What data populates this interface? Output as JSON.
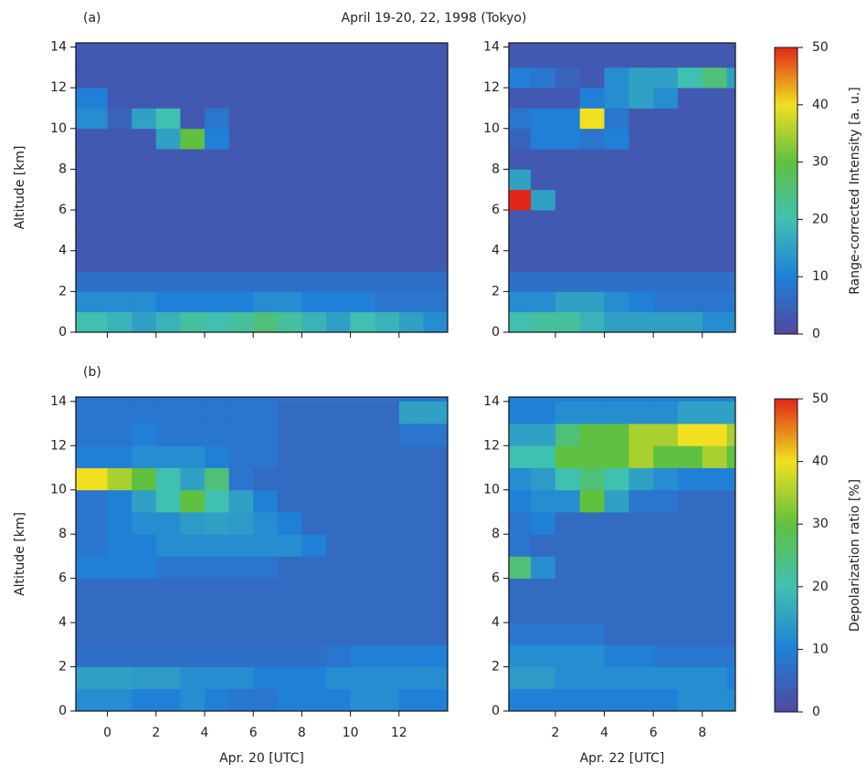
{
  "title": "April 19-20, 22, 1998 (Tokyo)",
  "colormap": [
    "#5048a0",
    "#2080d8",
    "#40c0b0",
    "#60c040",
    "#f0e020",
    "#e02818"
  ],
  "chart_data": [
    {
      "type": "heatmap",
      "label": "(a)",
      "ylabel": "Altitude [km]",
      "xtick_labels": false,
      "xlim": [
        -1.3,
        14
      ],
      "ylim": [
        0,
        14.2
      ],
      "xticks": [
        0,
        2,
        4,
        6,
        8,
        10,
        12
      ],
      "yticks": [
        0,
        2,
        4,
        6,
        8,
        10,
        12,
        14
      ],
      "xbins": [
        -1.3,
        0,
        1,
        2,
        3,
        4,
        5,
        6,
        7,
        8,
        9,
        10,
        11,
        12,
        13,
        14
      ],
      "ybins": [
        0,
        1,
        2,
        3,
        4,
        5,
        6,
        7,
        8,
        9,
        10,
        11,
        12,
        13,
        14
      ],
      "z": [
        [
          20,
          18,
          15,
          18,
          22,
          20,
          22,
          25,
          22,
          18,
          15,
          20,
          18,
          15,
          12
        ],
        [
          12,
          12,
          12,
          10,
          10,
          10,
          10,
          12,
          12,
          10,
          10,
          10,
          8,
          8,
          8
        ],
        [
          7,
          7,
          7,
          7,
          7,
          7,
          7,
          7,
          7,
          7,
          7,
          7,
          7,
          7,
          7
        ],
        [
          3,
          3,
          3,
          3,
          3,
          3,
          3,
          3,
          3,
          3,
          3,
          3,
          3,
          3,
          3
        ],
        [
          3,
          3,
          3,
          3,
          3,
          3,
          3,
          3,
          3,
          3,
          3,
          3,
          3,
          3,
          3
        ],
        [
          3,
          3,
          3,
          3,
          3,
          3,
          3,
          3,
          3,
          3,
          3,
          3,
          3,
          3,
          3
        ],
        [
          3,
          3,
          3,
          3,
          3,
          3,
          3,
          3,
          3,
          3,
          3,
          3,
          3,
          3,
          3
        ],
        [
          3,
          3,
          3,
          3,
          3,
          3,
          3,
          3,
          3,
          3,
          3,
          3,
          3,
          3,
          3
        ],
        [
          3,
          3,
          3,
          3,
          3,
          3,
          3,
          3,
          3,
          3,
          3,
          3,
          3,
          3,
          3
        ],
        [
          3,
          3,
          3,
          15,
          30,
          10,
          3,
          3,
          3,
          3,
          3,
          3,
          3,
          3,
          3
        ],
        [
          12,
          5,
          15,
          20,
          3,
          8,
          3,
          3,
          3,
          3,
          3,
          3,
          3,
          3,
          3
        ],
        [
          10,
          3,
          3,
          3,
          3,
          3,
          3,
          3,
          3,
          3,
          3,
          3,
          3,
          3,
          3
        ],
        [
          3,
          3,
          3,
          3,
          3,
          3,
          3,
          3,
          3,
          3,
          3,
          3,
          3,
          3,
          3
        ],
        [
          3,
          3,
          3,
          3,
          3,
          3,
          3,
          3,
          3,
          3,
          3,
          3,
          3,
          3,
          3
        ]
      ]
    },
    {
      "type": "heatmap",
      "xtick_labels": false,
      "xlim": [
        0.1,
        9.35
      ],
      "ylim": [
        0,
        14.2
      ],
      "xticks": [
        2,
        4,
        6,
        8
      ],
      "yticks": [
        0,
        2,
        4,
        6,
        8,
        10,
        12,
        14
      ],
      "xbins": [
        0.1,
        1,
        2,
        3,
        4,
        5,
        6,
        7,
        8,
        9,
        9.35
      ],
      "ybins": [
        0,
        1,
        2,
        3,
        4,
        5,
        6,
        7,
        8,
        9,
        10,
        11,
        12,
        13,
        14
      ],
      "z": [
        [
          20,
          22,
          22,
          18,
          15,
          15,
          15,
          15,
          12,
          12
        ],
        [
          12,
          12,
          15,
          15,
          12,
          10,
          8,
          8,
          8,
          8
        ],
        [
          7,
          7,
          7,
          7,
          7,
          7,
          7,
          7,
          7,
          7
        ],
        [
          3,
          3,
          3,
          3,
          3,
          3,
          3,
          3,
          3,
          3
        ],
        [
          3,
          3,
          3,
          3,
          3,
          3,
          3,
          3,
          3,
          3
        ],
        [
          3,
          3,
          3,
          3,
          3,
          3,
          3,
          3,
          3,
          3
        ],
        [
          50,
          15,
          3,
          3,
          3,
          3,
          3,
          3,
          3,
          3
        ],
        [
          15,
          3,
          3,
          3,
          3,
          3,
          3,
          3,
          3,
          3
        ],
        [
          3,
          3,
          3,
          3,
          3,
          3,
          3,
          3,
          3,
          3
        ],
        [
          5,
          10,
          10,
          8,
          10,
          3,
          3,
          3,
          3,
          3
        ],
        [
          8,
          10,
          10,
          40,
          8,
          3,
          3,
          3,
          3,
          3
        ],
        [
          3,
          3,
          3,
          10,
          12,
          15,
          12,
          3,
          3,
          3
        ],
        [
          10,
          8,
          5,
          3,
          12,
          15,
          15,
          20,
          25,
          15
        ],
        [
          3,
          3,
          3,
          3,
          3,
          3,
          3,
          3,
          3,
          3
        ]
      ],
      "colorbar": {
        "label": "Range-corrected Intensity [a. u.]",
        "lim": [
          0,
          50
        ],
        "ticks": [
          0,
          10,
          20,
          30,
          40,
          50
        ]
      }
    },
    {
      "type": "heatmap",
      "label": "(b)",
      "ylabel": "Altitude [km]",
      "xlabel": "Apr. 20 [UTC]",
      "xtick_labels": true,
      "xlim": [
        -1.3,
        14
      ],
      "ylim": [
        0,
        14.2
      ],
      "xticks": [
        0,
        2,
        4,
        6,
        8,
        10,
        12
      ],
      "yticks": [
        0,
        2,
        4,
        6,
        8,
        10,
        12,
        14
      ],
      "xbins": [
        -1.3,
        0,
        1,
        2,
        3,
        4,
        5,
        6,
        7,
        8,
        9,
        10,
        11,
        12,
        13,
        14
      ],
      "ybins": [
        0,
        1,
        2,
        3,
        4,
        5,
        6,
        7,
        8,
        9,
        10,
        11,
        12,
        13,
        14
      ],
      "z": [
        [
          12,
          12,
          10,
          10,
          12,
          10,
          8,
          8,
          10,
          10,
          10,
          12,
          12,
          10,
          10
        ],
        [
          15,
          15,
          14,
          14,
          12,
          12,
          12,
          10,
          10,
          10,
          12,
          12,
          12,
          12,
          12
        ],
        [
          7,
          7,
          7,
          7,
          7,
          7,
          7,
          7,
          7,
          7,
          8,
          10,
          10,
          10,
          10
        ],
        [
          6,
          6,
          6,
          6,
          6,
          6,
          6,
          6,
          6,
          6,
          6,
          6,
          6,
          6,
          6
        ],
        [
          6,
          6,
          6,
          6,
          6,
          6,
          6,
          6,
          6,
          6,
          6,
          6,
          6,
          6,
          6
        ],
        [
          6,
          6,
          6,
          6,
          6,
          6,
          6,
          6,
          6,
          6,
          6,
          6,
          6,
          6,
          6
        ],
        [
          10,
          10,
          10,
          8,
          8,
          8,
          8,
          8,
          6,
          6,
          6,
          6,
          6,
          6,
          6
        ],
        [
          8,
          10,
          10,
          12,
          12,
          12,
          12,
          12,
          12,
          10,
          6,
          6,
          6,
          6,
          6
        ],
        [
          8,
          10,
          12,
          12,
          14,
          15,
          14,
          12,
          10,
          6,
          6,
          6,
          6,
          6,
          6
        ],
        [
          8,
          10,
          15,
          20,
          30,
          20,
          15,
          10,
          6,
          6,
          6,
          6,
          6,
          6,
          6
        ],
        [
          40,
          35,
          30,
          20,
          15,
          25,
          8,
          6,
          6,
          6,
          6,
          6,
          6,
          6,
          6
        ],
        [
          10,
          10,
          12,
          12,
          12,
          10,
          8,
          8,
          6,
          6,
          6,
          6,
          6,
          6,
          6
        ],
        [
          8,
          8,
          10,
          8,
          8,
          8,
          8,
          8,
          6,
          6,
          6,
          6,
          6,
          8,
          8
        ],
        [
          8,
          8,
          8,
          8,
          8,
          8,
          8,
          8,
          6,
          6,
          6,
          6,
          6,
          15,
          15
        ]
      ]
    },
    {
      "type": "heatmap",
      "xlabel": "Apr. 22 [UTC]",
      "xtick_labels": true,
      "xlim": [
        0.1,
        9.35
      ],
      "ylim": [
        0,
        14.2
      ],
      "xticks": [
        2,
        4,
        6,
        8
      ],
      "yticks": [
        0,
        2,
        4,
        6,
        8,
        10,
        12,
        14
      ],
      "xbins": [
        0.1,
        1,
        2,
        3,
        4,
        5,
        6,
        7,
        8,
        9,
        9.35
      ],
      "ybins": [
        0,
        1,
        2,
        3,
        4,
        5,
        6,
        7,
        8,
        9,
        10,
        11,
        12,
        13,
        14
      ],
      "z": [
        [
          10,
          10,
          10,
          10,
          10,
          10,
          10,
          12,
          12,
          12
        ],
        [
          14,
          14,
          12,
          12,
          12,
          12,
          12,
          12,
          12,
          10
        ],
        [
          12,
          12,
          12,
          12,
          10,
          10,
          8,
          8,
          8,
          8
        ],
        [
          8,
          8,
          8,
          8,
          6,
          6,
          6,
          6,
          6,
          6
        ],
        [
          6,
          6,
          6,
          6,
          6,
          6,
          6,
          6,
          6,
          6
        ],
        [
          6,
          6,
          6,
          6,
          6,
          6,
          6,
          6,
          6,
          6
        ],
        [
          25,
          12,
          6,
          6,
          6,
          6,
          6,
          6,
          6,
          6
        ],
        [
          8,
          6,
          6,
          6,
          6,
          6,
          6,
          6,
          6,
          6
        ],
        [
          8,
          10,
          6,
          6,
          6,
          6,
          6,
          6,
          6,
          6
        ],
        [
          10,
          12,
          12,
          30,
          15,
          8,
          8,
          6,
          6,
          6
        ],
        [
          12,
          14,
          20,
          25,
          20,
          15,
          12,
          10,
          10,
          10
        ],
        [
          20,
          20,
          30,
          30,
          30,
          35,
          30,
          30,
          35,
          30
        ],
        [
          15,
          15,
          25,
          30,
          30,
          35,
          35,
          40,
          40,
          35
        ],
        [
          10,
          10,
          12,
          12,
          12,
          12,
          12,
          15,
          15,
          15
        ]
      ],
      "colorbar": {
        "label": "Depolarization ratio [%]",
        "lim": [
          0,
          50
        ],
        "ticks": [
          0,
          10,
          20,
          30,
          40,
          50
        ]
      }
    }
  ]
}
